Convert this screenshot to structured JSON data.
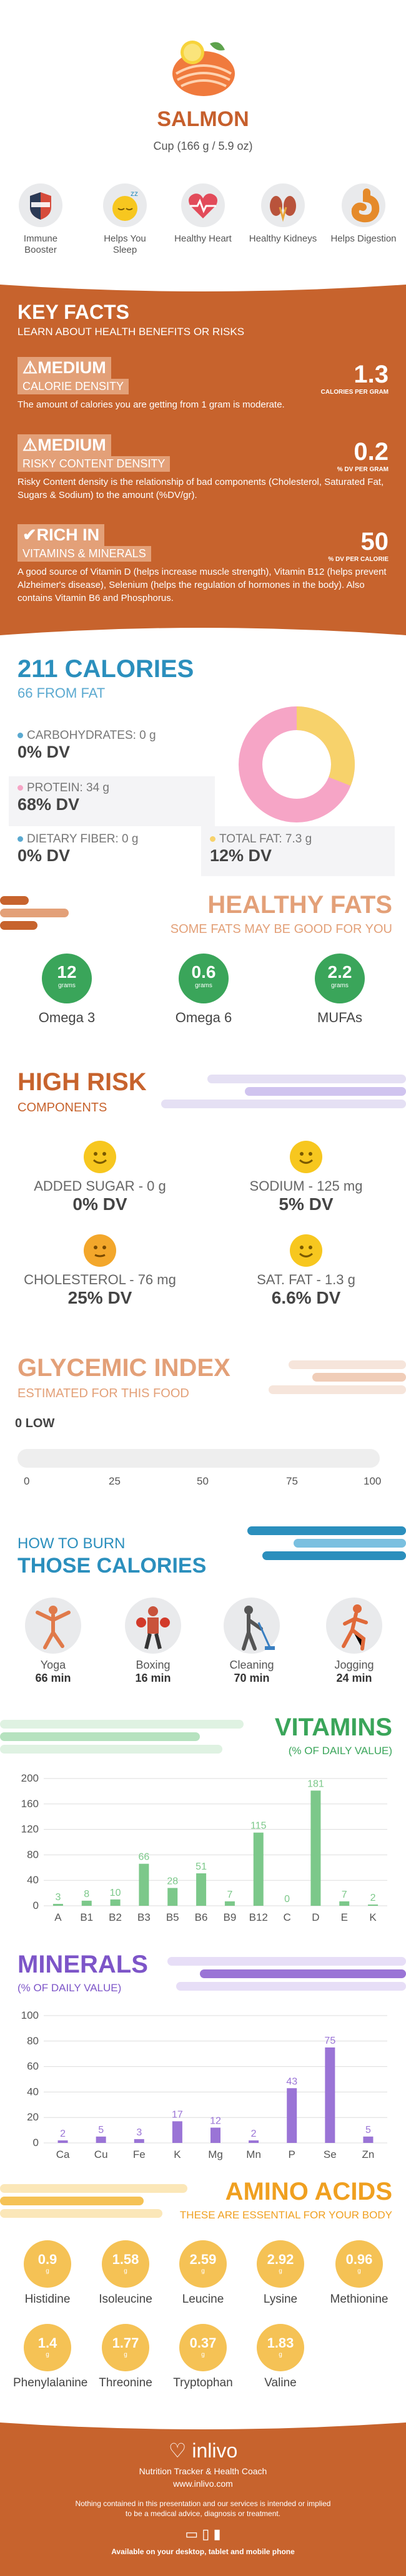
{
  "header": {
    "title": "SALMON",
    "serving": "Cup (166 g / 5.9 oz)",
    "benefits": [
      {
        "label": "Immune Booster",
        "icon": "shield-icon"
      },
      {
        "label": "Helps You Sleep",
        "icon": "sleep-icon"
      },
      {
        "label": "Healthy Heart",
        "icon": "heart-icon"
      },
      {
        "label": "Healthy Kidneys",
        "icon": "kidney-icon"
      },
      {
        "label": "Helps Digestion",
        "icon": "stomach-icon"
      }
    ]
  },
  "key_facts": {
    "title": "KEY FACTS",
    "subtitle": "LEARN ABOUT HEALTH BENEFITS OR RISKS",
    "facts": [
      {
        "level": "MEDIUM",
        "name": "CALORIE DENSITY",
        "value": "1.3",
        "unit": "CALORIES PER GRAM",
        "desc": "The amount of calories you are getting from 1 gram is moderate."
      },
      {
        "level": "MEDIUM",
        "name": "RISKY CONTENT DENSITY",
        "value": "0.2",
        "unit": "% DV PER GRAM",
        "desc": "Risky Content density is the relationship of bad components (Cholesterol, Saturated Fat, Sugars & Sodium) to the amount (%DV/gr)."
      },
      {
        "level": "RICH IN",
        "name": "VITAMINS & MINERALS",
        "value": "50",
        "unit": "% DV PER CALORIE",
        "desc": "A good source of Vitamin D (helps increase muscle strength), Vitamin B12 (helps prevent Alzheimer's disease), Selenium (helps the regulation of hormones in the body). Also contains Vitamin B6 and Phosphorus."
      }
    ]
  },
  "calories": {
    "title": "211 CALORIES",
    "subtitle": "66 FROM FAT",
    "carbs_label": "CARBOHYDRATES: 0 g",
    "carbs_dv": "0% DV",
    "protein_label": "PROTEIN: 34 g",
    "protein_dv": "68% DV",
    "fiber_label": "DIETARY FIBER: 0 g",
    "fiber_dv": "0% DV",
    "fat_label": "TOTAL FAT: 7.3 g",
    "fat_dv": "12% DV",
    "colors": {
      "carbs": "#5aa9d0",
      "protein": "#f6a5c6",
      "fiber": "#5aa9d0",
      "fat": "#f7d26b"
    }
  },
  "healthy_fats": {
    "title": "HEALTHY FATS",
    "subtitle": "SOME FATS MAY BE GOOD FOR YOU",
    "items": [
      {
        "value": "12",
        "unit": "grams",
        "label": "Omega 3"
      },
      {
        "value": "0.6",
        "unit": "grams",
        "label": "Omega 6"
      },
      {
        "value": "2.2",
        "unit": "grams",
        "label": "MUFAs"
      }
    ]
  },
  "high_risk": {
    "title": "HIGH RISK",
    "subtitle": "COMPONENTS",
    "items": [
      {
        "label": "ADDED SUGAR - 0 g",
        "dv": "0% DV"
      },
      {
        "label": "SODIUM - 125 mg",
        "dv": "5% DV"
      },
      {
        "label": "CHOLESTEROL - 76 mg",
        "dv": "25% DV"
      },
      {
        "label": "SAT. FAT - 1.3 g",
        "dv": "6.6% DV"
      }
    ]
  },
  "glycemic": {
    "title": "GLYCEMIC INDEX",
    "subtitle": "ESTIMATED FOR THIS FOOD",
    "level_value": "0",
    "level_label": "LOW",
    "ticks": [
      "0",
      "25",
      "50",
      "75",
      "100"
    ]
  },
  "burn": {
    "title_small": "HOW TO BURN",
    "title_big": "THOSE CALORIES",
    "activities": [
      {
        "name": "Yoga",
        "time": "66 min",
        "icon": "yoga-icon"
      },
      {
        "name": "Boxing",
        "time": "16 min",
        "icon": "boxing-icon"
      },
      {
        "name": "Cleaning",
        "time": "70 min",
        "icon": "cleaning-icon"
      },
      {
        "name": "Jogging",
        "time": "24 min",
        "icon": "jogging-icon"
      }
    ]
  },
  "vitamins_title": "VITAMINS",
  "vitamins_sub": "(% OF DAILY VALUE)",
  "minerals_title": "MINERALS",
  "minerals_sub": "(% OF DAILY VALUE)",
  "chart_data": [
    {
      "type": "bar",
      "name_key": "vitamins",
      "categories": [
        "A",
        "B1",
        "B2",
        "B3",
        "B5",
        "B6",
        "B9",
        "B12",
        "C",
        "D",
        "E",
        "K"
      ],
      "values": [
        3,
        8,
        10,
        66,
        28,
        51,
        7,
        115,
        0,
        181,
        7,
        2
      ],
      "yticks": [
        0,
        40,
        80,
        120,
        160,
        200
      ],
      "ylim": [
        0,
        200
      ],
      "color": "#7cc88a"
    },
    {
      "type": "bar",
      "name_key": "minerals",
      "categories": [
        "Ca",
        "Cu",
        "Fe",
        "K",
        "Mg",
        "Mn",
        "P",
        "Se",
        "Zn"
      ],
      "values": [
        2,
        5,
        3,
        17,
        12,
        2,
        43,
        75,
        5
      ],
      "yticks": [
        0,
        20,
        40,
        60,
        80,
        100
      ],
      "ylim": [
        0,
        100
      ],
      "color": "#9a74d6"
    }
  ],
  "amino": {
    "title": "AMINO ACIDS",
    "subtitle": "THESE ARE ESSENTIAL FOR YOUR BODY",
    "items": [
      {
        "value": "0.9",
        "unit": "g",
        "label": "Histidine"
      },
      {
        "value": "1.58",
        "unit": "g",
        "label": "Isoleucine"
      },
      {
        "value": "2.59",
        "unit": "g",
        "label": "Leucine"
      },
      {
        "value": "2.92",
        "unit": "g",
        "label": "Lysine"
      },
      {
        "value": "0.96",
        "unit": "g",
        "label": "Methionine"
      },
      {
        "value": "1.4",
        "unit": "g",
        "label": "Phenylalanine"
      },
      {
        "value": "1.77",
        "unit": "g",
        "label": "Threonine"
      },
      {
        "value": "0.37",
        "unit": "g",
        "label": "Tryptophan"
      },
      {
        "value": "1.83",
        "unit": "g",
        "label": "Valine"
      }
    ]
  },
  "footer": {
    "brand": "inlivo",
    "tagline": "Nutrition Tracker & Health Coach",
    "url": "www.inlivo.com",
    "disclaimer": "Nothing contained in this presentation and our services is intended or implied to be a medical advice, diagnosis or treatment.",
    "available": "Available on your desktop, tablet and mobile phone"
  }
}
